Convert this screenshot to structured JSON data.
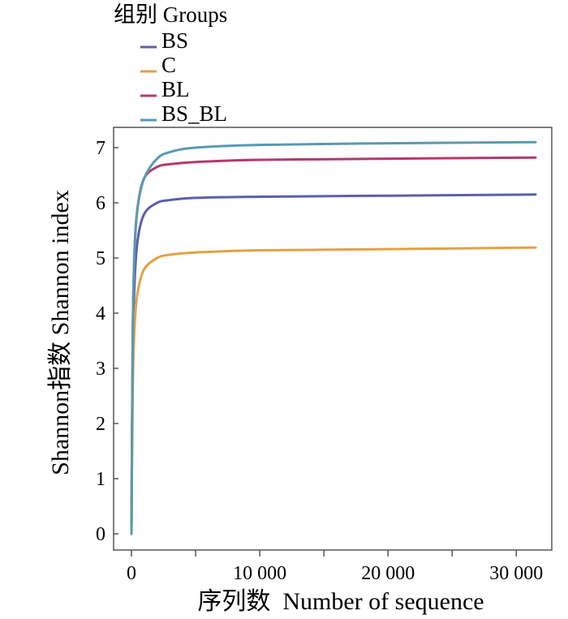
{
  "chart_data": {
    "type": "line",
    "legend": {
      "title": "组别 Groups",
      "placement": "top-left"
    },
    "xlabel": "序列数  Number of sequence",
    "ylabel": "Shannon指数   Shannon index",
    "xlim": [
      0,
      32000
    ],
    "ylim": [
      -0.3,
      7.4
    ],
    "xticks": [
      0,
      10000,
      20000,
      30000
    ],
    "xtick_labels": [
      "0",
      "10 000",
      "20 000",
      "30 000"
    ],
    "yticks": [
      0,
      1,
      2,
      3,
      4,
      5,
      6,
      7
    ],
    "ytick_labels": [
      "0",
      "1",
      "2",
      "3",
      "4",
      "5",
      "6",
      "7"
    ],
    "grid": false,
    "x": [
      0,
      100,
      250,
      500,
      1000,
      2000,
      3000,
      5000,
      10000,
      20000,
      31500
    ],
    "series": [
      {
        "name": "BS",
        "color": "#5b5fae",
        "values": [
          0,
          3.2,
          4.6,
          5.35,
          5.8,
          6.0,
          6.05,
          6.09,
          6.11,
          6.13,
          6.15
        ]
      },
      {
        "name": "C",
        "color": "#e2a245",
        "values": [
          0,
          2.6,
          3.8,
          4.4,
          4.8,
          5.0,
          5.06,
          5.1,
          5.14,
          5.16,
          5.19
        ]
      },
      {
        "name": "BL",
        "color": "#b23a6e",
        "values": [
          0,
          3.6,
          5.2,
          5.95,
          6.45,
          6.65,
          6.7,
          6.74,
          6.78,
          6.8,
          6.82
        ]
      },
      {
        "name": "BS_BL",
        "color": "#5a9ab2",
        "values": [
          0,
          3.6,
          5.2,
          5.95,
          6.45,
          6.8,
          6.92,
          7.0,
          7.05,
          7.08,
          7.1
        ]
      }
    ]
  }
}
